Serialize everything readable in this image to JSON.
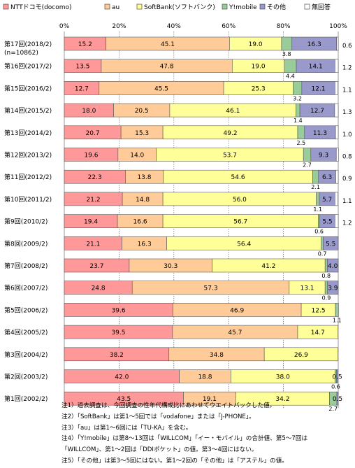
{
  "chart_data": {
    "type": "bar",
    "stacked": true,
    "orientation": "horizontal",
    "xlim": [
      0,
      100
    ],
    "x_ticks": [
      "0%",
      "20%",
      "40%",
      "60%",
      "80%",
      "100%"
    ],
    "legend_position": "top",
    "categories": [
      "第17回(2018/2)",
      "第16回(2017/2)",
      "第15回(2016/2)",
      "第14回(2015/2)",
      "第13回(2014/2)",
      "第12回(2013/2)",
      "第11回(2012/2)",
      "第10回(2011/2)",
      "第9回(2010/2)",
      "第8回(2009/2)",
      "第7回(2008/2)",
      "第6回(2007/2)",
      "第5回(2006/2)",
      "第4回(2005/2)",
      "第3回(2004/2)",
      "第2回(2003/2)",
      "第1回(2002/2)"
    ],
    "sub_label": "(n=10862)",
    "series": [
      {
        "name": "NTTドコモ(docomo)",
        "color": "#ff9999",
        "values": [
          15.2,
          13.5,
          12.7,
          18.0,
          20.7,
          19.6,
          22.3,
          21.2,
          19.4,
          21.1,
          23.7,
          24.8,
          39.6,
          39.5,
          38.2,
          42.0,
          43.5
        ]
      },
      {
        "name": "au",
        "color": "#ffcc99",
        "values": [
          45.1,
          47.8,
          45.5,
          20.5,
          15.3,
          14.0,
          13.8,
          14.8,
          16.6,
          16.3,
          30.3,
          57.3,
          46.9,
          45.7,
          34.8,
          18.8,
          19.1
        ]
      },
      {
        "name": "SoftBank(ソフトバンク)",
        "color": "#ffff99",
        "values": [
          19.0,
          19.0,
          25.3,
          46.1,
          49.2,
          53.7,
          54.6,
          56.0,
          56.7,
          56.4,
          41.2,
          13.1,
          12.5,
          14.7,
          26.9,
          38.0,
          34.2
        ]
      },
      {
        "name": "Y!mobile",
        "color": "#99cc99",
        "values": [
          3.8,
          4.4,
          3.2,
          1.4,
          2.5,
          2.7,
          2.1,
          1.1,
          0.6,
          0.7,
          0.8,
          0.9,
          1.1,
          0.0,
          0.0,
          0.6,
          2.7
        ]
      },
      {
        "name": "その他",
        "color": "#9999cc",
        "values": [
          16.3,
          14.1,
          12.1,
          12.7,
          11.3,
          9.3,
          6.3,
          5.7,
          5.5,
          5.5,
          4.0,
          3.9,
          0.0,
          0.0,
          0.0,
          0.5,
          0.5
        ]
      },
      {
        "name": "無回答",
        "color": "#ffffff",
        "values": [
          0.6,
          1.2,
          1.1,
          1.3,
          1.0,
          0.8,
          0.9,
          1.1,
          1.2,
          0.0,
          0.0,
          0.0,
          0.0,
          0.0,
          0.0,
          0.0,
          0.0
        ]
      }
    ],
    "data_labels": {
      "docomo": [
        "15.2",
        "13.5",
        "12.7",
        "18.0",
        "20.7",
        "19.6",
        "22.3",
        "21.2",
        "19.4",
        "21.1",
        "23.7",
        "24.8",
        "39.6",
        "39.5",
        "38.2",
        "42.0",
        "43.5"
      ],
      "au": [
        "45.1",
        "47.8",
        "45.5",
        "20.5",
        "15.3",
        "14.0",
        "13.8",
        "14.8",
        "16.6",
        "16.3",
        "30.3",
        "57.3",
        "46.9",
        "45.7",
        "34.8",
        "18.8",
        "19.1"
      ],
      "softbank": [
        "19.0",
        "19.0",
        "25.3",
        "46.1",
        "49.2",
        "53.7",
        "54.6",
        "56.0",
        "56.7",
        "56.4",
        "41.2",
        "13.1",
        "12.5",
        "14.7",
        "26.9",
        "38.0",
        "34.2"
      ],
      "ymobile": [
        "3.8",
        "4.4",
        "3.2",
        "1.4",
        "2.5",
        "2.7",
        "2.1",
        "1.1",
        "0.6",
        "0.7",
        "0.8",
        "0.9",
        "1.1",
        "",
        "",
        "0.6",
        "2.7"
      ],
      "other": [
        "16.3",
        "14.1",
        "12.1",
        "12.7",
        "11.3",
        "9.3",
        "6.3",
        "5.7",
        "5.5",
        "5.5",
        "4.0",
        "3.9",
        "",
        "",
        "",
        "0.5",
        "0.5"
      ],
      "noanswer": [
        "0.6",
        "1.2",
        "1.1",
        "1.3",
        "1.0",
        "0.8",
        "0.9",
        "1.1",
        "1.2",
        "",
        "",
        "",
        "",
        "",
        "",
        "",
        ""
      ]
    }
  },
  "notes": [
    "注1）過去調査は、今回調査の性年代構成比にあわせてウエイトバックした値。",
    "注2）「SoftBank」は第1～5回では「vodafone」または「J-PHONE」。",
    "注3）「au」は第1～6回には「TU-KA」を含む。",
    "注4）「Y!mobile」は第8～13回は「WILLCOM」「イー・モバイル」の合計値、第5～7回は",
    "「WILLCOM」、第1～2回は「DDIポケット」の値。第3～4回にはない。",
    "注5）「その他」は第3～5回にはない。第1～2回の「その他」は「アステル」の値。"
  ]
}
